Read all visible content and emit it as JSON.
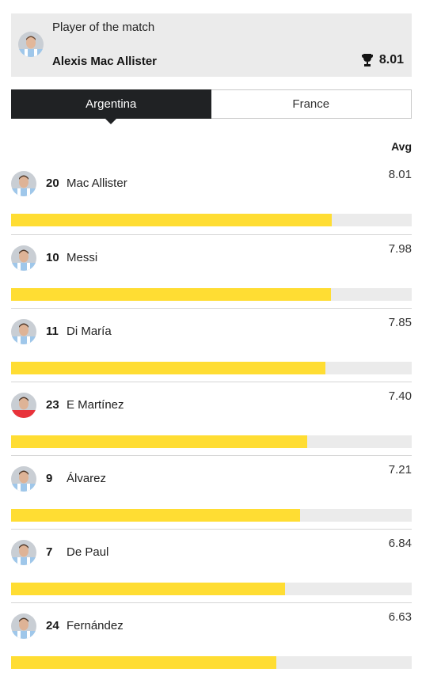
{
  "potm": {
    "label": "Player of the match",
    "name": "Alexis Mac Allister",
    "score": "8.01"
  },
  "tabs": [
    {
      "label": "Argentina",
      "active": true
    },
    {
      "label": "France",
      "active": false
    }
  ],
  "column_header": "Avg",
  "rating_max": 10,
  "players": [
    {
      "number": "20",
      "name": "Mac Allister",
      "rating": "8.01",
      "kit": "stripes"
    },
    {
      "number": "10",
      "name": "Messi",
      "rating": "7.98",
      "kit": "stripes"
    },
    {
      "number": "11",
      "name": "Di María",
      "rating": "7.85",
      "kit": "stripes"
    },
    {
      "number": "23",
      "name": "E Martínez",
      "rating": "7.40",
      "kit": "red"
    },
    {
      "number": "9",
      "name": "Álvarez",
      "rating": "7.21",
      "kit": "stripes"
    },
    {
      "number": "7",
      "name": "De Paul",
      "rating": "6.84",
      "kit": "stripes"
    },
    {
      "number": "24",
      "name": "Fernández",
      "rating": "6.63",
      "kit": "stripes"
    }
  ],
  "colors": {
    "bar_fill": "#ffdd33",
    "bar_track": "#ebebeb",
    "active_tab": "#202224"
  },
  "icons": {
    "trophy": "trophy-icon",
    "avatar": "player-avatar-icon"
  }
}
